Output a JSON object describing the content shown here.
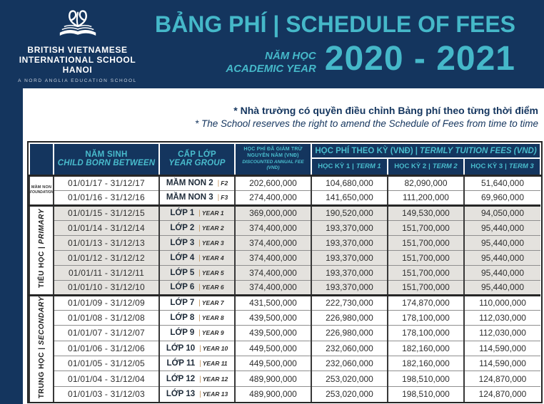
{
  "colors": {
    "navy": "#14355E",
    "teal": "#45B8C9",
    "header_text_teal": "#49BCCD",
    "row_shade": "#E4E2DE",
    "border_dark": "#262626",
    "pipe_tan": "#C1945F"
  },
  "pipe": "|",
  "header": {
    "school": {
      "name_line1": "BRITISH VIETNAMESE",
      "name_line2": "INTERNATIONAL SCHOOL",
      "name_line3": "HANOI",
      "tagline": "A NORD ANGLIA EDUCATION SCHOOL"
    },
    "title": "BẢNG PHÍ | SCHEDULE OF FEES",
    "year_label_vi": "NĂM HỌC",
    "year_label_en": "ACADEMIC YEAR",
    "year_range": "2020 - 2021"
  },
  "notes": {
    "vi": "* Nhà trường có quyền điều chỉnh Bảng phí theo từng thời điểm",
    "en": "* The School reserves the right to amend the Schedule of Fees from time to time"
  },
  "table": {
    "columns": {
      "child_born_vi": "NĂM SINH",
      "child_born_en": "CHILD BORN BETWEEN",
      "year_group_vi": "CẤP LỚP",
      "year_group_en": "YEAR GROUP",
      "annual_vi": "HỌC PHÍ ĐÃ GIẢM TRỪ NGUYÊN NĂM (VNĐ)",
      "annual_en": "DISCOUNTED ANNUAL FEE (VND)",
      "termly_vi": "HỌC PHÍ THEO KỲ (VNĐ)",
      "termly_en": "TERMLY TUITION FEES (VND)",
      "term1_vi": "HỌC KỲ 1",
      "term1_en": "TERM 1",
      "term2_vi": "HỌC KỲ 2",
      "term2_en": "TERM 2",
      "term3_vi": "HỌC KỲ 3",
      "term3_en": "TERM 3"
    },
    "sections": [
      {
        "id": "foundation",
        "label_vi": "MẦM NON",
        "label_en": "FOUNDATION",
        "rows": [
          {
            "born": "01/01/17 - 31/12/17",
            "group": "MẦM NON 2",
            "group_sub": "F2",
            "annual": "202,600,000",
            "term1": "104,680,000",
            "term2": "82,090,000",
            "term3": "51,640,000"
          },
          {
            "born": "01/01/16 - 31/12/16",
            "group": "MẦM NON 3",
            "group_sub": "F3",
            "annual": "274,400,000",
            "term1": "141,650,000",
            "term2": "111,200,000",
            "term3": "69,960,000"
          }
        ]
      },
      {
        "id": "primary",
        "label_vi": "TIỂU HỌC",
        "label_en": "PRIMARY",
        "rows": [
          {
            "born": "01/01/15 - 31/12/15",
            "group": "LỚP 1",
            "group_sub": "YEAR 1",
            "annual": "369,000,000",
            "term1": "190,520,000",
            "term2": "149,530,000",
            "term3": "94,050,000"
          },
          {
            "born": "01/01/14 - 31/12/14",
            "group": "LỚP 2",
            "group_sub": "YEAR 2",
            "annual": "374,400,000",
            "term1": "193,370,000",
            "term2": "151,700,000",
            "term3": "95,440,000"
          },
          {
            "born": "01/01/13 - 31/12/13",
            "group": "LỚP 3",
            "group_sub": "YEAR 3",
            "annual": "374,400,000",
            "term1": "193,370,000",
            "term2": "151,700,000",
            "term3": "95,440,000"
          },
          {
            "born": "01/01/12 - 31/12/12",
            "group": "LỚP 4",
            "group_sub": "YEAR 4",
            "annual": "374,400,000",
            "term1": "193,370,000",
            "term2": "151,700,000",
            "term3": "95,440,000"
          },
          {
            "born": "01/01/11 - 31/12/11",
            "group": "LỚP 5",
            "group_sub": "YEAR 5",
            "annual": "374,400,000",
            "term1": "193,370,000",
            "term2": "151,700,000",
            "term3": "95,440,000"
          },
          {
            "born": "01/01/10 - 31/12/10",
            "group": "LỚP 6",
            "group_sub": "YEAR 6",
            "annual": "374,400,000",
            "term1": "193,370,000",
            "term2": "151,700,000",
            "term3": "95,440,000"
          }
        ]
      },
      {
        "id": "secondary",
        "label_vi": "TRUNG HỌC",
        "label_en": "SECONDARY",
        "rows": [
          {
            "born": "01/01/09 - 31/12/09",
            "group": "LỚP 7",
            "group_sub": "YEAR 7",
            "annual": "431,500,000",
            "term1": "222,730,000",
            "term2": "174,870,000",
            "term3": "110,000,000"
          },
          {
            "born": "01/01/08 - 31/12/08",
            "group": "LỚP 8",
            "group_sub": "YEAR 8",
            "annual": "439,500,000",
            "term1": "226,980,000",
            "term2": "178,100,000",
            "term3": "112,030,000"
          },
          {
            "born": "01/01/07 - 31/12/07",
            "group": "LỚP 9",
            "group_sub": "YEAR 9",
            "annual": "439,500,000",
            "term1": "226,980,000",
            "term2": "178,100,000",
            "term3": "112,030,000"
          },
          {
            "born": "01/01/06 - 31/12/06",
            "group": "LỚP 10",
            "group_sub": "YEAR 10",
            "annual": "449,500,000",
            "term1": "232,060,000",
            "term2": "182,160,000",
            "term3": "114,590,000"
          },
          {
            "born": "01/01/05 - 31/12/05",
            "group": "LỚP 11",
            "group_sub": "YEAR 11",
            "annual": "449,500,000",
            "term1": "232,060,000",
            "term2": "182,160,000",
            "term3": "114,590,000"
          },
          {
            "born": "01/01/04 - 31/12/04",
            "group": "LỚP 12",
            "group_sub": "YEAR 12",
            "annual": "489,900,000",
            "term1": "253,020,000",
            "term2": "198,510,000",
            "term3": "124,870,000"
          },
          {
            "born": "01/01/03 - 31/12/03",
            "group": "LỚP 13",
            "group_sub": "YEAR 13",
            "annual": "489,900,000",
            "term1": "253,020,000",
            "term2": "198,510,000",
            "term3": "124,870,000"
          }
        ]
      }
    ]
  }
}
